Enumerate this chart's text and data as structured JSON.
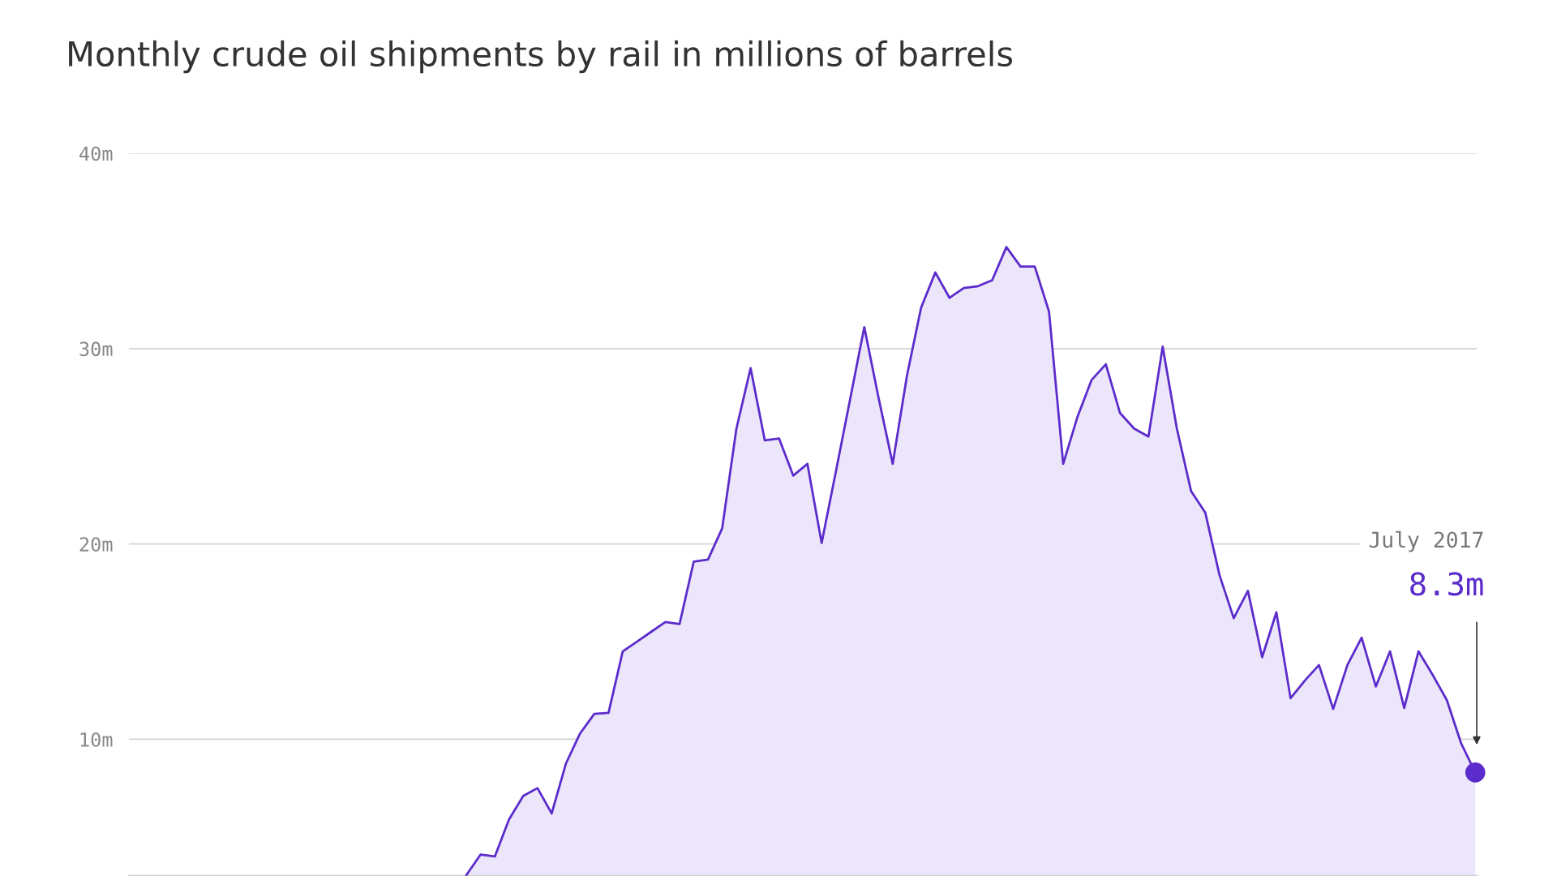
{
  "chart_data": {
    "type": "area",
    "title": "Monthly crude oil shipments by rail in millions of barrels",
    "categories": [
      null,
      null,
      null,
      null,
      null,
      null,
      null,
      null,
      null,
      null,
      null,
      null,
      null,
      null,
      null,
      null,
      null,
      null,
      null,
      null,
      null,
      null,
      null,
      null,
      null,
      null,
      null,
      null,
      null,
      null,
      null,
      null,
      null,
      null,
      null,
      null,
      null,
      null,
      null,
      null,
      null,
      null,
      null,
      null,
      null,
      null,
      null,
      null,
      null,
      null,
      null,
      null,
      null,
      null,
      null,
      null,
      null,
      null,
      null,
      null,
      null,
      null,
      null,
      null,
      null,
      null,
      null,
      null,
      null,
      null,
      null,
      null
    ],
    "series": [
      {
        "color": "#5b2bcc",
        "values": [
          3.05,
          4.1,
          4.0,
          5.9,
          7.1,
          7.5,
          6.2,
          8.75,
          10.3,
          11.3,
          11.35,
          14.5,
          15.0,
          15.5,
          16.0,
          15.9,
          19.1,
          19.2,
          20.8,
          25.9,
          29.0,
          25.3,
          25.4,
          23.5,
          24.1,
          20.05,
          23.7,
          27.4,
          31.1,
          27.5,
          24.1,
          28.6,
          32.1,
          33.9,
          32.6,
          33.1,
          33.2,
          33.5,
          35.2,
          34.2,
          34.2,
          31.9,
          24.1,
          26.5,
          28.4,
          29.2,
          26.7,
          25.9,
          25.5,
          30.1,
          25.9,
          22.7,
          21.6,
          18.4,
          16.2,
          17.6,
          14.2,
          16.5,
          12.1,
          13.0,
          13.8,
          11.55,
          13.8,
          15.2,
          12.7,
          14.5,
          11.6,
          14.5,
          13.3,
          12.0,
          9.8,
          8.3
        ]
      }
    ],
    "ylim": [
      3,
      40
    ],
    "yticks": [
      {
        "value": 10,
        "label": "10m"
      },
      {
        "value": 20,
        "label": "20m"
      },
      {
        "value": 30,
        "label": "30m"
      },
      {
        "value": 40,
        "label": "40m"
      }
    ],
    "grid": "y",
    "annotations": [
      "July 2017",
      "8.3m"
    ]
  }
}
